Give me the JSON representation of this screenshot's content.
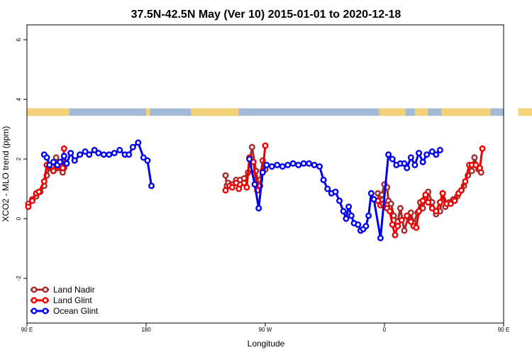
{
  "chart_data": {
    "type": "line",
    "title": "37.5N-42.5N May (Ver 10)   2015-01-01 to 2020-12-18",
    "xlabel": "Longitude",
    "ylabel": "XCO2 - MLO trend (ppm)",
    "xlim": [
      90,
      450
    ],
    "ylim": [
      -3.5,
      6.5
    ],
    "x_ticks": [
      {
        "value": 90,
        "label": "90 E"
      },
      {
        "value": 180,
        "label": "180"
      },
      {
        "value": 270,
        "label": "90 W"
      },
      {
        "value": 360,
        "label": "0"
      },
      {
        "value": 450,
        "label": "90 E"
      },
      {
        "value": 540,
        "label": "180"
      }
    ],
    "y_ticks": [
      {
        "value": -2,
        "label": "-2"
      },
      {
        "value": 0,
        "label": "0"
      },
      {
        "value": 2,
        "label": "2"
      },
      {
        "value": 4,
        "label": "4"
      },
      {
        "value": 6,
        "label": "6"
      }
    ],
    "legend_position": "bottom-left",
    "grid": false,
    "land_sea_strip": {
      "y_range": [
        3.45,
        3.7
      ],
      "ocean_color": "#a3b9d8",
      "land_color": "#f5d27a",
      "land_segments": [
        [
          90,
          122
        ],
        [
          180,
          183
        ],
        [
          214,
          250
        ],
        [
          356,
          376
        ],
        [
          383,
          393
        ],
        [
          403,
          440
        ],
        [
          461,
          494
        ],
        [
          504,
          508
        ]
      ]
    },
    "series": [
      {
        "name": "Land Nadir",
        "color": "#a52a2a",
        "points": [
          [
            91,
            0.5
          ],
          [
            94,
            0.65
          ],
          [
            97,
            0.75
          ],
          [
            100,
            0.9
          ],
          [
            103,
            1.1
          ],
          [
            105,
            1.45
          ],
          [
            107,
            1.7
          ],
          [
            110,
            1.6
          ],
          [
            112,
            2.05
          ],
          [
            113,
            1.7
          ],
          [
            117,
            1.55
          ],
          [
            118,
            1.7
          ],
          [
            240,
            1.45
          ],
          [
            241,
            1.1
          ],
          [
            242,
            1.2
          ],
          [
            245,
            1.15
          ],
          [
            248,
            1.3
          ],
          [
            251,
            1.3
          ],
          [
            254,
            1.35
          ],
          [
            257,
            1.55
          ],
          [
            260,
            2.4
          ],
          [
            263,
            1.6
          ],
          [
            265,
            1.05
          ],
          [
            266,
            1.3
          ],
          [
            268,
            1.95
          ],
          [
            270,
            1.65
          ],
          [
            355,
            0.85
          ],
          [
            357,
            0.75
          ],
          [
            358,
            0.8
          ],
          [
            360,
            1.15
          ],
          [
            362,
            1.05
          ],
          [
            363,
            0.6
          ],
          [
            365,
            0.5
          ],
          [
            367,
            0.1
          ],
          [
            370,
            -0.1
          ],
          [
            372,
            0.35
          ],
          [
            375,
            -0.4
          ],
          [
            378,
            0.05
          ],
          [
            380,
            0.2
          ],
          [
            382,
            -0.15
          ],
          [
            385,
            0.2
          ],
          [
            387,
            0.55
          ],
          [
            389,
            0.35
          ],
          [
            391,
            0.7
          ],
          [
            393,
            0.9
          ],
          [
            396,
            0.55
          ],
          [
            399,
            0.15
          ],
          [
            402,
            0.25
          ],
          [
            404,
            0.85
          ],
          [
            406,
            0.4
          ],
          [
            409,
            0.55
          ],
          [
            412,
            0.65
          ],
          [
            415,
            0.75
          ],
          [
            418,
            0.95
          ],
          [
            420,
            1.1
          ],
          [
            423,
            1.45
          ],
          [
            426,
            1.6
          ],
          [
            428,
            2.05
          ],
          [
            431,
            1.65
          ],
          [
            433,
            1.55
          ]
        ]
      },
      {
        "name": "Land Glint",
        "color": "#ee0000",
        "points": [
          [
            91,
            0.4
          ],
          [
            94,
            0.6
          ],
          [
            97,
            0.85
          ],
          [
            99,
            0.9
          ],
          [
            103,
            1.25
          ],
          [
            105,
            1.8
          ],
          [
            107,
            1.75
          ],
          [
            110,
            1.6
          ],
          [
            113,
            1.75
          ],
          [
            117,
            1.7
          ],
          [
            118,
            2.35
          ],
          [
            240,
            0.95
          ],
          [
            243,
            1.1
          ],
          [
            245,
            1.05
          ],
          [
            248,
            1.2
          ],
          [
            250,
            1.0
          ],
          [
            254,
            1.2
          ],
          [
            256,
            1.05
          ],
          [
            258,
            2.05
          ],
          [
            261,
            1.9
          ],
          [
            264,
            0.95
          ],
          [
            266,
            1.1
          ],
          [
            268,
            1.6
          ],
          [
            270,
            2.45
          ],
          [
            355,
            0.6
          ],
          [
            357,
            0.45
          ],
          [
            359,
            0.5
          ],
          [
            362,
            0.35
          ],
          [
            364,
            0.25
          ],
          [
            366,
            -0.2
          ],
          [
            368,
            -0.55
          ],
          [
            370,
            -0.25
          ],
          [
            373,
            -0.05
          ],
          [
            377,
            0.1
          ],
          [
            380,
            -0.1
          ],
          [
            382,
            -0.25
          ],
          [
            384,
            -0.3
          ],
          [
            386,
            0.25
          ],
          [
            389,
            0.6
          ],
          [
            391,
            0.8
          ],
          [
            393,
            0.55
          ],
          [
            396,
            0.35
          ],
          [
            399,
            0.25
          ],
          [
            402,
            0.55
          ],
          [
            404,
            0.85
          ],
          [
            407,
            0.5
          ],
          [
            410,
            0.5
          ],
          [
            413,
            0.6
          ],
          [
            416,
            0.85
          ],
          [
            418,
            0.95
          ],
          [
            421,
            1.25
          ],
          [
            424,
            1.8
          ],
          [
            426,
            1.8
          ],
          [
            429,
            1.8
          ],
          [
            432,
            1.7
          ],
          [
            434,
            2.35
          ]
        ]
      },
      {
        "name": "Ocean Glint",
        "color": "#0000ee",
        "points": [
          [
            103,
            2.15
          ],
          [
            105,
            2.05
          ],
          [
            107,
            1.8
          ],
          [
            110,
            1.9
          ],
          [
            113,
            1.8
          ],
          [
            115,
            1.9
          ],
          [
            118,
            2.1
          ],
          [
            120,
            1.85
          ],
          [
            123,
            2.2
          ],
          [
            126,
            1.95
          ],
          [
            130,
            2.15
          ],
          [
            134,
            2.25
          ],
          [
            137,
            2.15
          ],
          [
            141,
            2.3
          ],
          [
            144,
            2.2
          ],
          [
            148,
            2.15
          ],
          [
            152,
            2.15
          ],
          [
            156,
            2.2
          ],
          [
            160,
            2.3
          ],
          [
            164,
            2.15
          ],
          [
            167,
            2.15
          ],
          [
            170,
            2.4
          ],
          [
            174,
            2.55
          ],
          [
            178,
            2.05
          ],
          [
            181,
            1.95
          ],
          [
            184,
            1.1
          ],
          [
            258,
            2.0
          ],
          [
            262,
            1.15
          ],
          [
            265,
            0.35
          ],
          [
            268,
            1.55
          ],
          [
            271,
            1.8
          ],
          [
            275,
            1.75
          ],
          [
            279,
            1.8
          ],
          [
            283,
            1.75
          ],
          [
            287,
            1.8
          ],
          [
            291,
            1.85
          ],
          [
            295,
            1.8
          ],
          [
            299,
            1.85
          ],
          [
            303,
            1.85
          ],
          [
            307,
            1.8
          ],
          [
            311,
            1.75
          ],
          [
            314,
            1.3
          ],
          [
            317,
            1.0
          ],
          [
            320,
            0.85
          ],
          [
            323,
            0.9
          ],
          [
            326,
            0.6
          ],
          [
            329,
            0.25
          ],
          [
            331,
            0.0
          ],
          [
            333,
            0.4
          ],
          [
            335,
            0.1
          ],
          [
            337,
            -0.15
          ],
          [
            340,
            -0.2
          ],
          [
            342,
            -0.4
          ],
          [
            344,
            -0.35
          ],
          [
            346,
            -0.25
          ],
          [
            348,
            0.1
          ],
          [
            350,
            0.85
          ],
          [
            352,
            0.65
          ],
          [
            357,
            -0.65
          ],
          [
            363,
            2.15
          ],
          [
            366,
            2.0
          ],
          [
            369,
            1.8
          ],
          [
            372,
            1.85
          ],
          [
            375,
            1.85
          ],
          [
            377,
            1.7
          ],
          [
            380,
            2.05
          ],
          [
            383,
            1.8
          ],
          [
            386,
            2.2
          ],
          [
            389,
            1.9
          ],
          [
            392,
            2.15
          ],
          [
            396,
            2.25
          ],
          [
            399,
            2.15
          ],
          [
            402,
            2.3
          ]
        ]
      }
    ]
  }
}
